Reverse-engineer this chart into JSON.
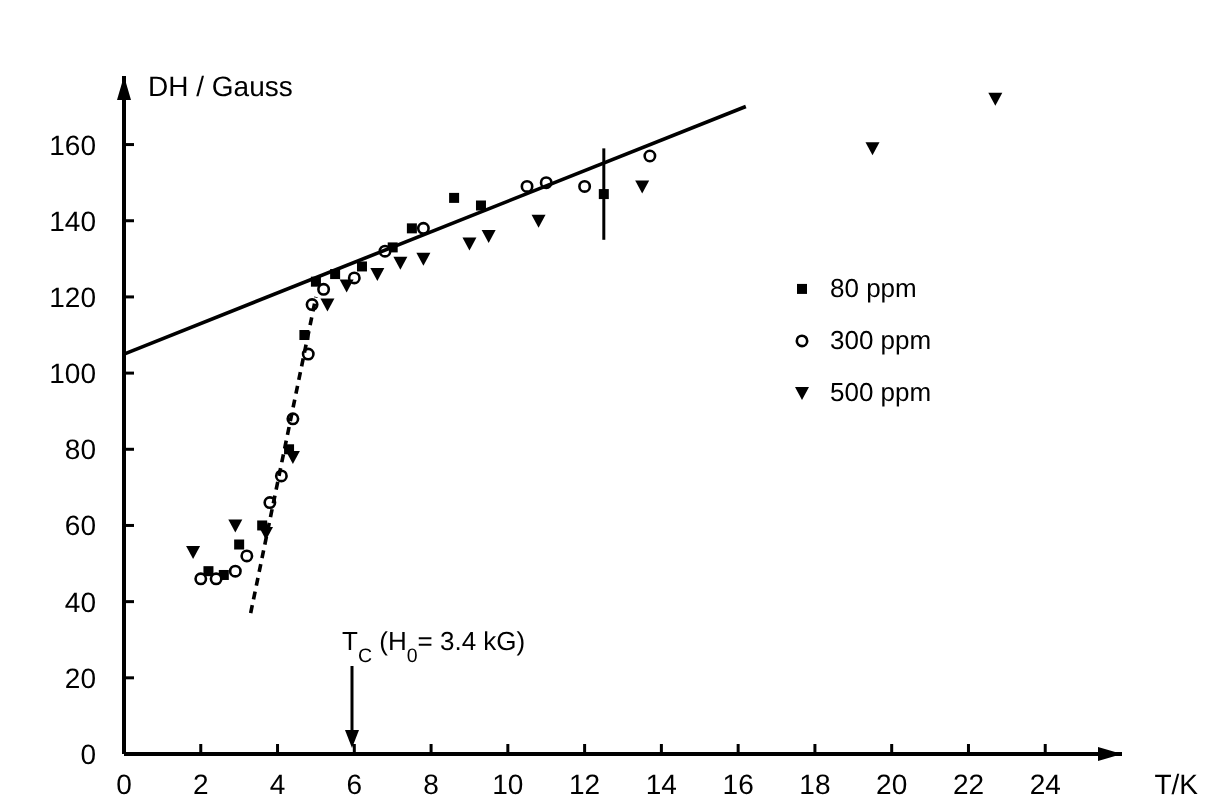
{
  "chart_data": {
    "type": "scatter",
    "xlabel": "T/K",
    "ylabel": "DH / Gauss",
    "xlim": [
      0,
      26
    ],
    "ylim": [
      0,
      178
    ],
    "xticks": [
      0,
      2,
      4,
      6,
      8,
      10,
      12,
      14,
      16,
      18,
      20,
      22,
      24
    ],
    "yticks": [
      0,
      20,
      40,
      60,
      80,
      100,
      120,
      140,
      160
    ],
    "grid": false,
    "legend": "right",
    "series": [
      {
        "name": "80 ppm",
        "color": "#000000",
        "marker": "square",
        "x": [
          2.2,
          2.6,
          3.0,
          3.6,
          4.3,
          4.7,
          5.0,
          5.5,
          6.2,
          7.0,
          7.5,
          8.6,
          9.3,
          12.5
        ],
        "values": [
          48,
          47,
          55,
          60,
          80,
          110,
          124,
          126,
          128,
          133,
          138,
          146,
          144,
          147
        ],
        "errors": [
          null,
          null,
          null,
          null,
          null,
          null,
          null,
          null,
          null,
          null,
          null,
          null,
          null,
          12
        ]
      },
      {
        "name": "300 ppm",
        "color": "#000000",
        "marker": "circle",
        "x": [
          2.0,
          2.4,
          2.9,
          3.2,
          3.8,
          4.1,
          4.4,
          4.8,
          4.9,
          5.2,
          6.0,
          6.8,
          7.8,
          10.5,
          11.0,
          12.0,
          13.7
        ],
        "values": [
          46,
          46,
          48,
          52,
          66,
          73,
          88,
          105,
          118,
          122,
          125,
          132,
          138,
          149,
          150,
          149,
          157
        ]
      },
      {
        "name": "500 ppm",
        "color": "#000000",
        "marker": "triangle",
        "x": [
          1.8,
          2.9,
          3.7,
          4.4,
          5.3,
          5.8,
          6.6,
          7.2,
          7.8,
          9.0,
          9.5,
          10.8,
          13.5,
          19.5,
          22.7
        ],
        "values": [
          53,
          60,
          58,
          78,
          118,
          123,
          126,
          129,
          130,
          134,
          136,
          140,
          149,
          159,
          172
        ]
      },
      {
        "type": "line",
        "color": "#000000",
        "line_style": "solid",
        "x": [
          0,
          16.2
        ],
        "values": [
          105,
          170
        ]
      },
      {
        "type": "line",
        "color": "#000000",
        "line_style": "dashed",
        "x": [
          3.3,
          5.0
        ],
        "values": [
          37,
          120
        ]
      }
    ],
    "annotations": [
      "T$_{C}$ (H$_{0}$= 3.4 kG)"
    ]
  }
}
